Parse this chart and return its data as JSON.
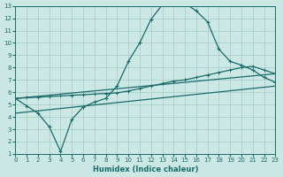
{
  "xlabel": "Humidex (Indice chaleur)",
  "xlim": [
    0,
    23
  ],
  "ylim": [
    1,
    13
  ],
  "xticks": [
    0,
    1,
    2,
    3,
    4,
    5,
    6,
    7,
    8,
    9,
    10,
    11,
    12,
    13,
    14,
    15,
    16,
    17,
    18,
    19,
    20,
    21,
    22,
    23
  ],
  "yticks": [
    1,
    2,
    3,
    4,
    5,
    6,
    7,
    8,
    9,
    10,
    11,
    12,
    13
  ],
  "bg_color": "#cce8e4",
  "grid_color": "#aacfcb",
  "line_color": "#1a6b6b",
  "line1_x": [
    0,
    1,
    2,
    3,
    4,
    5,
    6,
    7,
    8,
    9,
    10,
    11,
    12,
    13,
    14,
    15,
    16,
    17,
    18,
    19,
    20,
    21,
    22,
    23
  ],
  "line1_y": [
    5.5,
    4.9,
    4.3,
    3.2,
    1.2,
    3.8,
    4.8,
    5.2,
    5.5,
    6.5,
    8.5,
    10.0,
    11.9,
    13.1,
    13.2,
    13.2,
    12.6,
    11.7,
    9.5,
    8.5,
    8.2,
    7.8,
    7.2,
    6.8
  ],
  "line2_x": [
    0,
    1,
    2,
    3,
    4,
    5,
    6,
    7,
    8,
    9,
    10,
    11,
    12,
    13,
    14,
    15,
    16,
    17,
    18,
    19,
    20,
    21,
    22,
    23
  ],
  "line2_y": [
    5.5,
    5.55,
    5.6,
    5.65,
    5.7,
    5.75,
    5.8,
    5.85,
    5.9,
    5.95,
    6.1,
    6.3,
    6.5,
    6.7,
    6.9,
    7.0,
    7.2,
    7.4,
    7.6,
    7.8,
    8.0,
    8.1,
    7.8,
    7.5
  ],
  "line3_x": [
    0,
    23
  ],
  "line3_y": [
    5.5,
    7.5
  ],
  "line4_x": [
    0,
    23
  ],
  "line4_y": [
    4.3,
    6.5
  ]
}
